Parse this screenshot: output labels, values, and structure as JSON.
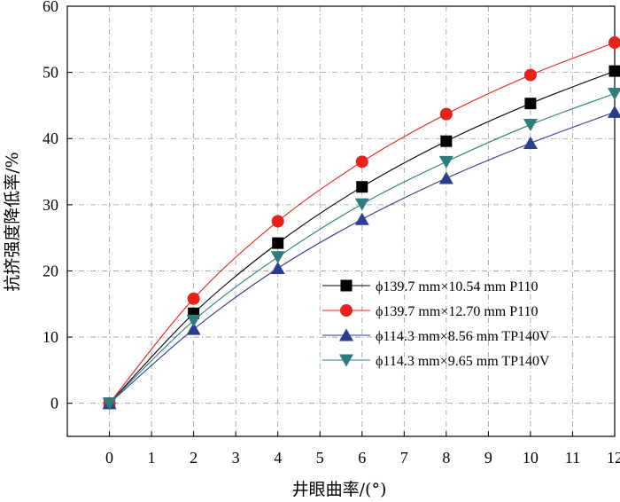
{
  "chart_data": {
    "type": "line",
    "title": "",
    "xlabel": "井眼曲率/(°)",
    "ylabel": "抗挤强度降低率/%",
    "xlim": [
      -1,
      12
    ],
    "ylim": [
      -5,
      60
    ],
    "x_ticks": [
      0,
      1,
      2,
      3,
      4,
      5,
      6,
      7,
      8,
      9,
      10,
      11,
      12
    ],
    "y_ticks": [
      0,
      10,
      20,
      30,
      40,
      50,
      60
    ],
    "grid": true,
    "legend_position": "lower-right",
    "series": [
      {
        "name": "ϕ139.7 mm×10.54 mm P110",
        "marker": "square",
        "color": "#000000",
        "x": [
          0,
          2,
          4,
          6,
          8,
          10,
          12
        ],
        "values": [
          0,
          13.6,
          24.2,
          32.7,
          39.6,
          45.3,
          50.2
        ]
      },
      {
        "name": "ϕ139.7 mm×12.70 mm P110",
        "marker": "circle",
        "color": "#e8221b",
        "x": [
          0,
          2,
          4,
          6,
          8,
          10,
          12
        ],
        "values": [
          0,
          15.8,
          27.5,
          36.5,
          43.7,
          49.6,
          54.5
        ]
      },
      {
        "name": "ϕ114.3 mm×8.56 mm TP140V",
        "marker": "triangle-up",
        "color": "#2a3d8f",
        "x": [
          0,
          2,
          4,
          6,
          8,
          10,
          12
        ],
        "values": [
          0,
          11.2,
          20.4,
          27.8,
          34.0,
          39.3,
          44.0
        ]
      },
      {
        "name": "ϕ114.3 mm×9.65 mm TP140V",
        "marker": "triangle-down",
        "color": "#2e7d7a",
        "x": [
          0,
          2,
          4,
          6,
          8,
          10,
          12
        ],
        "values": [
          0,
          12.5,
          22.1,
          30.1,
          36.5,
          42.1,
          46.8
        ]
      }
    ]
  }
}
